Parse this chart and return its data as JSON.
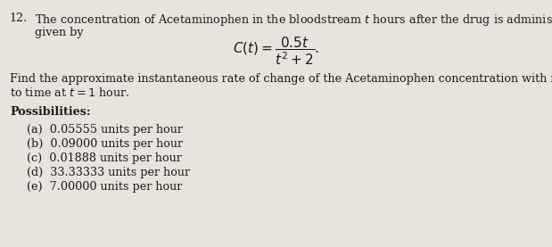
{
  "bg_color": "#e8e4dd",
  "text_color": "#1a1a1a",
  "figsize": [
    6.19,
    2.77
  ],
  "dpi": 100,
  "question_number": "12.",
  "line1": "The concentration of Acetaminophen in the bloodstream $t$ hours after the drug is administered is",
  "line2": "given by",
  "formula": "$C(t) = \\dfrac{0.5t}{t^2+2}.$",
  "line3": "Find the approximate instantaneous rate of change of the Acetaminophen concentration with respect",
  "line4": "to time at $t = 1$ hour.",
  "possibilities_label": "Possibilities:",
  "choices": [
    "(a)  0.05555 units per hour",
    "(b)  0.09000 units per hour",
    "(c)  0.01888 units per hour",
    "(d)  33.33333 units per hour",
    "(e)  7.00000 units per hour"
  ]
}
